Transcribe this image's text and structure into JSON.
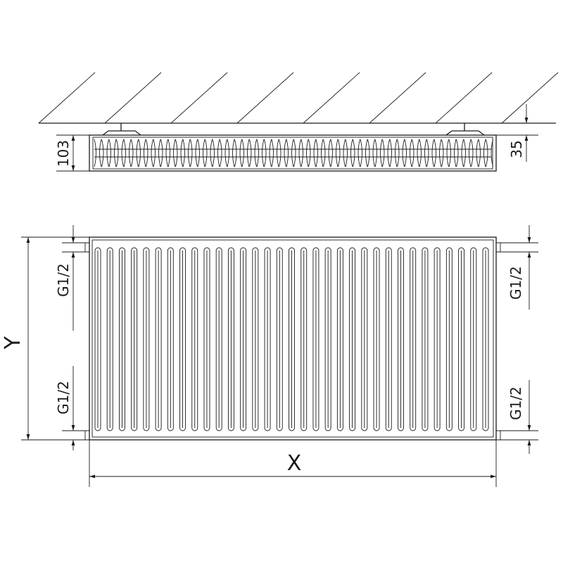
{
  "drawing": {
    "subject": "panel radiator",
    "line_color": "#1a1a1a",
    "background": "#ffffff",
    "fin_count": 33
  },
  "dimensions": {
    "depth": "103",
    "wall_gap": "35",
    "height": "Y",
    "width": "X",
    "connection_top_left": "G1/2",
    "connection_bottom_left": "G1/2",
    "connection_top_right": "G1/2",
    "connection_bottom_right": "G1/2"
  }
}
